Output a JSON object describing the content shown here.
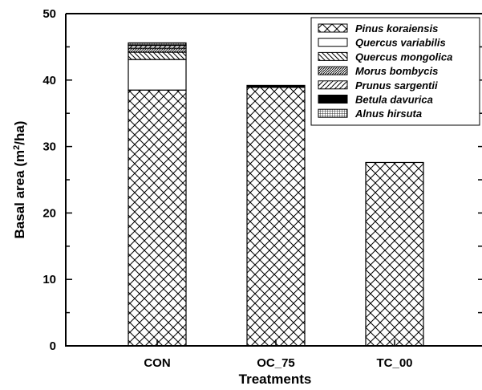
{
  "chart_data": {
    "type": "bar",
    "stacked": true,
    "title": "",
    "xlabel": "Treatments",
    "ylabel": "Basal area (m2/ha)",
    "ylabel_parts": {
      "pre": "Basal area (m",
      "sup": "2",
      "post": "/ha)"
    },
    "ylim": [
      0,
      50
    ],
    "yticks": [
      0,
      10,
      20,
      30,
      40,
      50
    ],
    "grid": false,
    "legend_position": "top-right",
    "categories": [
      "CON",
      "OC_75",
      "TC_00"
    ],
    "series": [
      {
        "name": "Pinus koraiensis",
        "pattern": "crosshatch",
        "values": [
          38.5,
          38.9,
          27.6
        ]
      },
      {
        "name": "Quercus variabilis",
        "pattern": "white",
        "values": [
          4.6,
          0,
          0
        ]
      },
      {
        "name": "Quercus mongolica",
        "pattern": "backdiag",
        "values": [
          1.1,
          0,
          0
        ]
      },
      {
        "name": "Morus bombycis",
        "pattern": "densediag",
        "values": [
          0.6,
          0,
          0
        ]
      },
      {
        "name": "Prunus sargentii",
        "pattern": "fwddiag",
        "values": [
          0.4,
          0,
          0
        ]
      },
      {
        "name": "Betula davurica",
        "pattern": "black",
        "values": [
          0.1,
          0.3,
          0
        ]
      },
      {
        "name": "Alnus hirsuta",
        "pattern": "grid",
        "values": [
          0.3,
          0,
          0
        ]
      }
    ]
  }
}
